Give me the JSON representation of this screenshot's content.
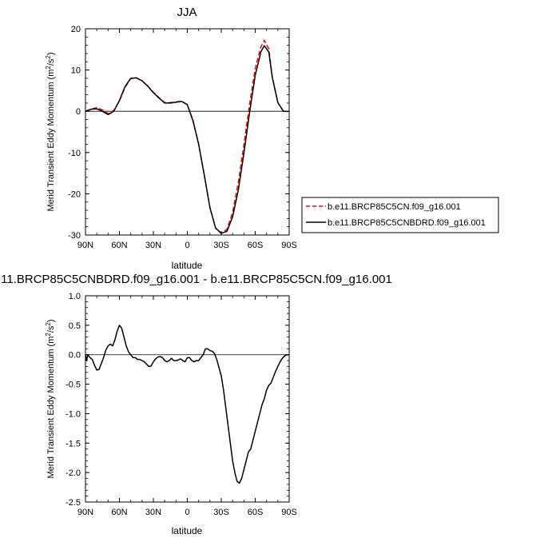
{
  "chart_data": [
    {
      "type": "line",
      "title": "JJA",
      "xlabel": "latitude",
      "ylabel": "Merid Transient Eddy Momentum (m",
      "ylabel_sup1": "2",
      "ylabel_mid": "/s",
      "ylabel_sup2": "2",
      "ylabel_end": ")",
      "xlim": [
        90,
        -90
      ],
      "ylim": [
        -30,
        20
      ],
      "xticks": [
        {
          "value": 90,
          "label": "90N"
        },
        {
          "value": 60,
          "label": "60N"
        },
        {
          "value": 30,
          "label": "30N"
        },
        {
          "value": 0,
          "label": "0"
        },
        {
          "value": -30,
          "label": "30S"
        },
        {
          "value": -60,
          "label": "60S"
        },
        {
          "value": -90,
          "label": "90S"
        }
      ],
      "yticks": [
        {
          "value": 20,
          "label": "20"
        },
        {
          "value": 10,
          "label": "10"
        },
        {
          "value": 0,
          "label": "0"
        },
        {
          "value": -10,
          "label": "-10"
        },
        {
          "value": -20,
          "label": "-20"
        },
        {
          "value": -30,
          "label": "-30"
        }
      ],
      "legend_position": "right",
      "series": [
        {
          "name": "b.e11.BRCP85C5CN.f09_g16.001",
          "color": "#ff0000",
          "dash": "dashed",
          "x": [
            90,
            85,
            80,
            75,
            70,
            65,
            60,
            55,
            50,
            45,
            40,
            35,
            30,
            25,
            20,
            15,
            10,
            5,
            0,
            -5,
            -10,
            -15,
            -20,
            -25,
            -30,
            -35,
            -40,
            -45,
            -50,
            -55,
            -60,
            -65,
            -68,
            -72,
            -75,
            -80,
            -85,
            -90
          ],
          "values": [
            0,
            0.5,
            0.9,
            0.3,
            -0.6,
            0.2,
            2.5,
            5.8,
            7.9,
            8.1,
            7.4,
            6.2,
            4.6,
            3.3,
            2.1,
            2.1,
            2.3,
            2.4,
            1.6,
            -2.2,
            -7.9,
            -15.5,
            -23.3,
            -28.3,
            -29.6,
            -28.6,
            -24.5,
            -17.3,
            -8.1,
            1.7,
            10.4,
            15.6,
            17.2,
            15.1,
            8.5,
            2.1,
            -0.1,
            0
          ]
        },
        {
          "name": "b.e11.BRCP85C5CNBDRD.f09_g16.001",
          "color": "#000000",
          "dash": "solid",
          "x": [
            90,
            85,
            80,
            75,
            70,
            65,
            60,
            55,
            50,
            45,
            40,
            35,
            30,
            25,
            20,
            15,
            10,
            5,
            0,
            -5,
            -10,
            -15,
            -20,
            -25,
            -30,
            -35,
            -40,
            -45,
            -50,
            -55,
            -60,
            -65,
            -68,
            -72,
            -75,
            -80,
            -85,
            -90
          ],
          "values": [
            0,
            0.5,
            0.6,
            0.0,
            -0.8,
            0.0,
            2.6,
            6.0,
            8.0,
            8.1,
            7.4,
            6.1,
            4.5,
            3.2,
            2.0,
            2.0,
            2.2,
            2.4,
            1.6,
            -2.3,
            -8.0,
            -15.5,
            -23.4,
            -28.3,
            -29.6,
            -29.1,
            -25.6,
            -19.2,
            -10.2,
            -0.3,
            8.7,
            14.4,
            15.9,
            14.4,
            8.3,
            2.1,
            0.0,
            0
          ]
        }
      ]
    },
    {
      "type": "line",
      "title": "11.BRCP85C5CNBDRD.f09_g16.001 - b.e11.BRCP85C5CN.f09_g16.001",
      "xlabel": "latitude",
      "ylabel": "Merid Transient Eddy Momentum (m",
      "ylabel_sup1": "2",
      "ylabel_mid": "/s",
      "ylabel_sup2": "2",
      "ylabel_end": ")",
      "xlim": [
        90,
        -90
      ],
      "ylim": [
        -2.5,
        1.0
      ],
      "xticks": [
        {
          "value": 90,
          "label": "90N"
        },
        {
          "value": 60,
          "label": "60N"
        },
        {
          "value": 30,
          "label": "30N"
        },
        {
          "value": 0,
          "label": "0"
        },
        {
          "value": -30,
          "label": "30S"
        },
        {
          "value": -60,
          "label": "60S"
        },
        {
          "value": -90,
          "label": "90S"
        }
      ],
      "yticks": [
        {
          "value": 1.0,
          "label": "1.0"
        },
        {
          "value": 0.5,
          "label": "0.5"
        },
        {
          "value": 0.0,
          "label": "0.0"
        },
        {
          "value": -0.5,
          "label": "-0.5"
        },
        {
          "value": -1.0,
          "label": "-1.0"
        },
        {
          "value": -1.5,
          "label": "-1.5"
        },
        {
          "value": -2.0,
          "label": "-2.0"
        },
        {
          "value": -2.5,
          "label": "-2.5"
        }
      ],
      "series": [
        {
          "color": "#000000",
          "dash": "solid",
          "x": [
            90,
            89,
            88,
            86,
            84,
            82,
            80,
            78,
            76,
            74,
            72,
            70,
            68,
            66,
            64,
            62,
            60,
            58,
            56,
            54,
            52,
            50,
            48,
            46,
            44,
            42,
            40,
            38,
            36,
            34,
            32,
            30,
            28,
            26,
            24,
            22,
            20,
            18,
            16,
            14,
            12,
            10,
            8,
            6,
            4,
            2,
            0,
            -2,
            -4,
            -6,
            -8,
            -10,
            -12,
            -14,
            -16,
            -18,
            -20,
            -22,
            -24,
            -26,
            -28,
            -30,
            -32,
            -34,
            -36,
            -38,
            -40,
            -42,
            -44,
            -46,
            -48,
            -50,
            -52,
            -54,
            -56,
            -58,
            -60,
            -62,
            -64,
            -66,
            -68,
            -70,
            -72,
            -74,
            -76,
            -78,
            -80,
            -82,
            -84,
            -86,
            -88,
            -90
          ],
          "values": [
            0.0,
            -0.1,
            0.0,
            -0.05,
            -0.08,
            -0.18,
            -0.26,
            -0.25,
            -0.15,
            -0.05,
            0.08,
            0.15,
            0.18,
            0.15,
            0.25,
            0.4,
            0.5,
            0.45,
            0.3,
            0.15,
            0.05,
            0.0,
            -0.05,
            -0.05,
            -0.08,
            -0.08,
            -0.1,
            -0.12,
            -0.16,
            -0.2,
            -0.19,
            -0.12,
            -0.07,
            -0.04,
            -0.03,
            -0.05,
            -0.1,
            -0.12,
            -0.1,
            -0.06,
            -0.1,
            -0.1,
            -0.09,
            -0.07,
            -0.1,
            -0.12,
            -0.05,
            -0.05,
            -0.1,
            -0.12,
            -0.1,
            -0.1,
            -0.05,
            0.0,
            0.1,
            0.1,
            0.07,
            0.06,
            0.02,
            -0.08,
            -0.22,
            -0.36,
            -0.6,
            -0.9,
            -1.2,
            -1.5,
            -1.8,
            -2.0,
            -2.15,
            -2.18,
            -2.1,
            -1.95,
            -1.8,
            -1.65,
            -1.6,
            -1.45,
            -1.3,
            -1.15,
            -1.0,
            -0.85,
            -0.75,
            -0.6,
            -0.52,
            -0.48,
            -0.38,
            -0.28,
            -0.2,
            -0.12,
            -0.06,
            -0.02,
            0.0,
            0.0
          ]
        }
      ]
    }
  ]
}
